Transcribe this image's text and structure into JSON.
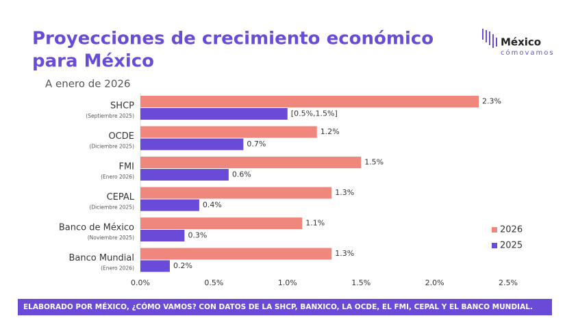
{
  "chart_data": {
    "type": "hbar",
    "title": [
      "Proyecciones de crecimiento económico",
      "para México"
    ],
    "subtitle": "A enero de 2026",
    "categories": [
      "SHCP",
      "OCDE",
      "FMI",
      "CEPAL",
      "Banco de México",
      "Banco Mundial"
    ],
    "category_notes": [
      "(Septiembre 2025)",
      "(Diciembre 2025)",
      "(Enero 2026)",
      "(Diciembre 2025)",
      "(Noviembre 2025)",
      "(Enero 2026)"
    ],
    "series": [
      {
        "name": "2026",
        "color": "#f0877d",
        "values": [
          2.3,
          1.2,
          1.5,
          1.3,
          1.1,
          1.3
        ],
        "value_labels": [
          "2.3%",
          "1.2%",
          "1.5%",
          "1.3%",
          "1.1%",
          "1.3%"
        ]
      },
      {
        "name": "2025",
        "color": "#6a4bd8",
        "values": [
          1.0,
          0.7,
          0.6,
          0.4,
          0.3,
          0.2
        ],
        "value_labels": [
          "[0.5%,1.5%]",
          "0.7%",
          "0.6%",
          "0.4%",
          "0.3%",
          "0.2%"
        ]
      }
    ],
    "xlim": [
      0,
      2.5
    ],
    "xticks": [
      {
        "value": 0,
        "label": "0.0%"
      },
      {
        "value": 0.5,
        "label": "0.5%"
      },
      {
        "value": 1,
        "label": "1.0%"
      },
      {
        "value": 1.5,
        "label": "1.5%"
      },
      {
        "value": 2,
        "label": "2.0%"
      },
      {
        "value": 2.5,
        "label": "2.5%"
      }
    ],
    "legend": "right",
    "footer": "ELABORADO POR MÉXICO, ¿CÓMO VAMOS? CON DATOS DE LA SHCP, BANXICO, LA OCDE, EL FMI, CEPAL Y EL BANCO MUNDIAL.",
    "logo": {
      "top": "México",
      "bottom": "cómovamos"
    }
  }
}
